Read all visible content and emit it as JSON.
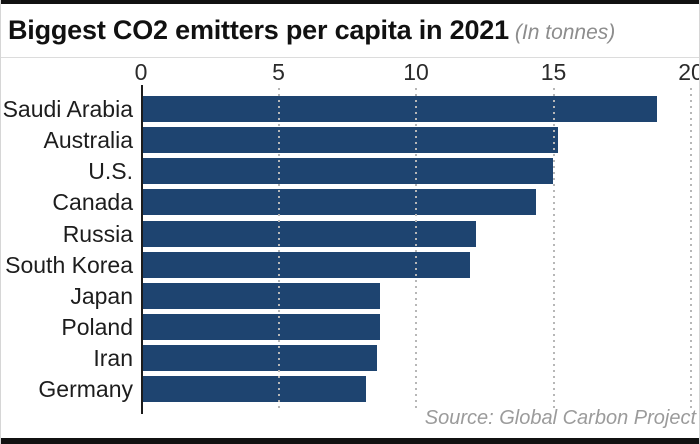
{
  "header": {
    "title": "Biggest CO2 emitters per capita in 2021",
    "subtitle": "(In tonnes)"
  },
  "footer": {
    "source": "Source: Global Carbon Project"
  },
  "colors": {
    "bar": "#1e4470",
    "axis_line": "#1c1c1c",
    "gridline": "#b7b7b7",
    "rule": "#111111",
    "subtitle_gray": "#8d8d8d",
    "source_gray": "#9b9b9b"
  },
  "chart_data": {
    "type": "bar",
    "orientation": "horizontal",
    "title": "Biggest CO2 emitters per capita in 2021",
    "subtitle": "(In tonnes)",
    "categories": [
      "Saudi Arabia",
      "Australia",
      "U.S.",
      "Canada",
      "Russia",
      "South Korea",
      "Japan",
      "Poland",
      "Iran",
      "Germany"
    ],
    "values": [
      18.7,
      15.1,
      14.9,
      14.3,
      12.1,
      11.9,
      8.6,
      8.6,
      8.5,
      8.1
    ],
    "xlabel": "",
    "ylabel": "",
    "xlim": [
      0,
      20
    ],
    "xticks": [
      0,
      5,
      10,
      15,
      20
    ],
    "grid": "vertical-dotted",
    "legend": "none",
    "bar_color": "#1e4470",
    "source": "Source: Global Carbon Project"
  }
}
